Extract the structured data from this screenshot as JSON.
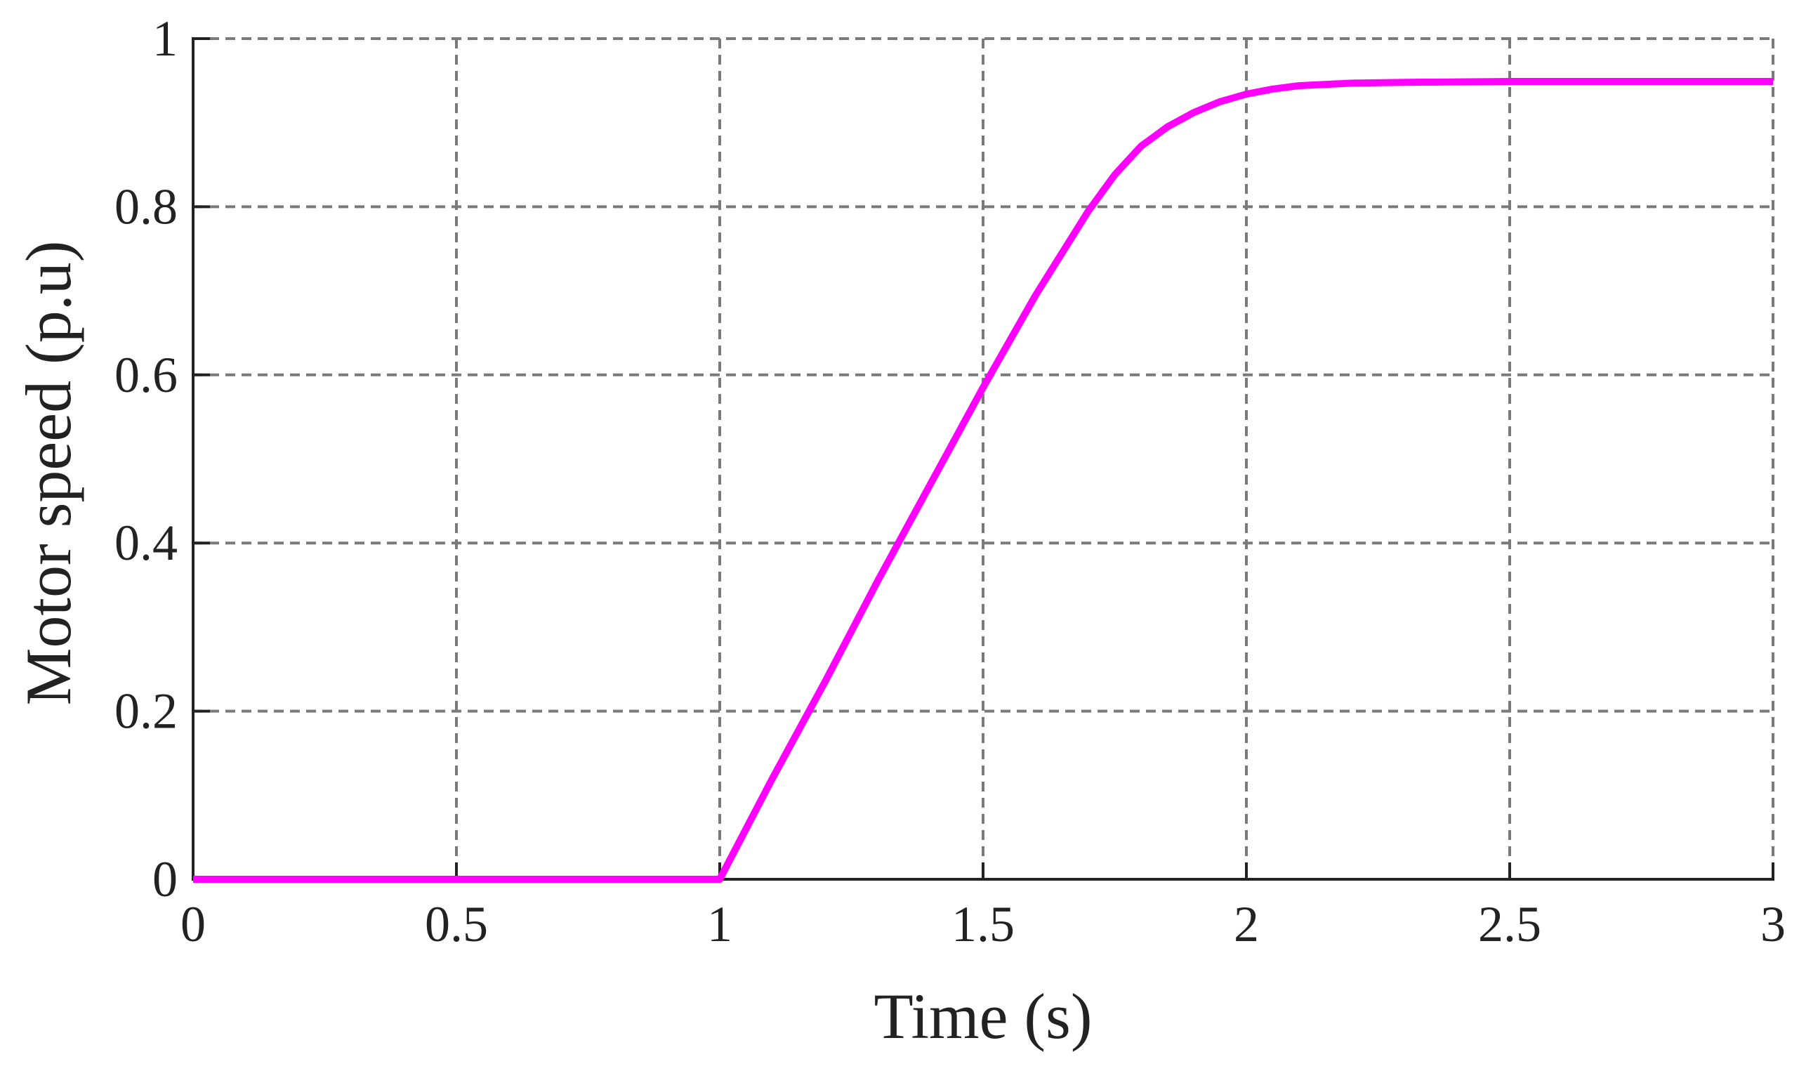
{
  "chart_data": {
    "type": "line",
    "xlabel": "Time (s)",
    "ylabel": "Motor speed (p.u)",
    "xlim": [
      0,
      3
    ],
    "ylim": [
      0,
      1
    ],
    "x_ticks": [
      0,
      0.5,
      1,
      1.5,
      2,
      2.5,
      3
    ],
    "x_tick_labels": [
      "0",
      "0.5",
      "1",
      "1.5",
      "2",
      "2.5",
      "3"
    ],
    "y_ticks": [
      0,
      0.2,
      0.4,
      0.6,
      0.8,
      1
    ],
    "y_tick_labels": [
      "0",
      "0.2",
      "0.4",
      "0.6",
      "0.8",
      "1"
    ],
    "grid": true,
    "grid_style": "dashed",
    "series": [
      {
        "color": "#ff00ff",
        "x": [
          0,
          0.5,
          1.0,
          1.1,
          1.2,
          1.3,
          1.4,
          1.5,
          1.6,
          1.7,
          1.75,
          1.8,
          1.85,
          1.9,
          1.95,
          2.0,
          2.05,
          2.1,
          2.2,
          2.3,
          2.5,
          2.75,
          3.0
        ],
        "y": [
          0,
          0,
          0,
          0.12,
          0.235,
          0.355,
          0.47,
          0.585,
          0.695,
          0.795,
          0.838,
          0.872,
          0.895,
          0.912,
          0.925,
          0.934,
          0.94,
          0.944,
          0.947,
          0.948,
          0.949,
          0.949,
          0.949
        ]
      }
    ]
  }
}
